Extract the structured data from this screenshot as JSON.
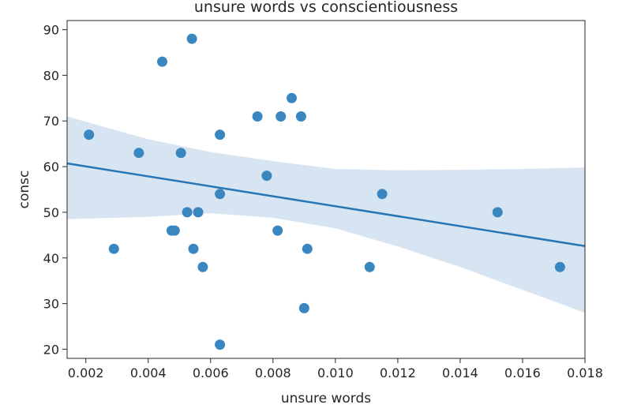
{
  "chart_data": {
    "type": "scatter",
    "title": "unsure words vs conscientiousness",
    "xlabel": "unsure words",
    "ylabel": "consc",
    "xlim": [
      0.0014,
      0.018
    ],
    "ylim": [
      18,
      92
    ],
    "xticks": [
      "0.002",
      "0.004",
      "0.006",
      "0.008",
      "0.010",
      "0.012",
      "0.014",
      "0.016",
      "0.018"
    ],
    "yticks": [
      "20",
      "30",
      "40",
      "50",
      "60",
      "70",
      "80",
      "90"
    ],
    "grid": false,
    "colors": {
      "points": "#3a86c0",
      "line": "#2676b6",
      "band": "#c9dcef"
    },
    "points": [
      {
        "x": 0.0021,
        "y": 67
      },
      {
        "x": 0.0029,
        "y": 42
      },
      {
        "x": 0.0037,
        "y": 63
      },
      {
        "x": 0.00445,
        "y": 83
      },
      {
        "x": 0.00475,
        "y": 46
      },
      {
        "x": 0.00485,
        "y": 46
      },
      {
        "x": 0.00505,
        "y": 63
      },
      {
        "x": 0.00525,
        "y": 50
      },
      {
        "x": 0.0054,
        "y": 88
      },
      {
        "x": 0.00545,
        "y": 42
      },
      {
        "x": 0.0056,
        "y": 50
      },
      {
        "x": 0.00575,
        "y": 38
      },
      {
        "x": 0.0063,
        "y": 67
      },
      {
        "x": 0.0063,
        "y": 54
      },
      {
        "x": 0.0063,
        "y": 21
      },
      {
        "x": 0.0075,
        "y": 71
      },
      {
        "x": 0.0078,
        "y": 58
      },
      {
        "x": 0.00815,
        "y": 46
      },
      {
        "x": 0.00825,
        "y": 71
      },
      {
        "x": 0.0086,
        "y": 75
      },
      {
        "x": 0.0089,
        "y": 71
      },
      {
        "x": 0.009,
        "y": 29
      },
      {
        "x": 0.0091,
        "y": 42
      },
      {
        "x": 0.0111,
        "y": 38
      },
      {
        "x": 0.0115,
        "y": 54
      },
      {
        "x": 0.0152,
        "y": 50
      },
      {
        "x": 0.0172,
        "y": 38
      }
    ],
    "regression": {
      "line": [
        [
          0.0014,
          60.7
        ],
        [
          0.018,
          42.6
        ]
      ],
      "ci_upper": [
        [
          0.0014,
          71.0
        ],
        [
          0.004,
          66.0
        ],
        [
          0.006,
          63.2
        ],
        [
          0.008,
          61.2
        ],
        [
          0.01,
          59.5
        ],
        [
          0.012,
          59.2
        ],
        [
          0.014,
          59.3
        ],
        [
          0.016,
          59.5
        ],
        [
          0.018,
          59.8
        ]
      ],
      "ci_lower": [
        [
          0.0014,
          48.5
        ],
        [
          0.004,
          49.0
        ],
        [
          0.006,
          49.8
        ],
        [
          0.008,
          48.8
        ],
        [
          0.01,
          46.5
        ],
        [
          0.012,
          42.5
        ],
        [
          0.014,
          38.0
        ],
        [
          0.016,
          33.0
        ],
        [
          0.018,
          28.0
        ]
      ]
    }
  }
}
